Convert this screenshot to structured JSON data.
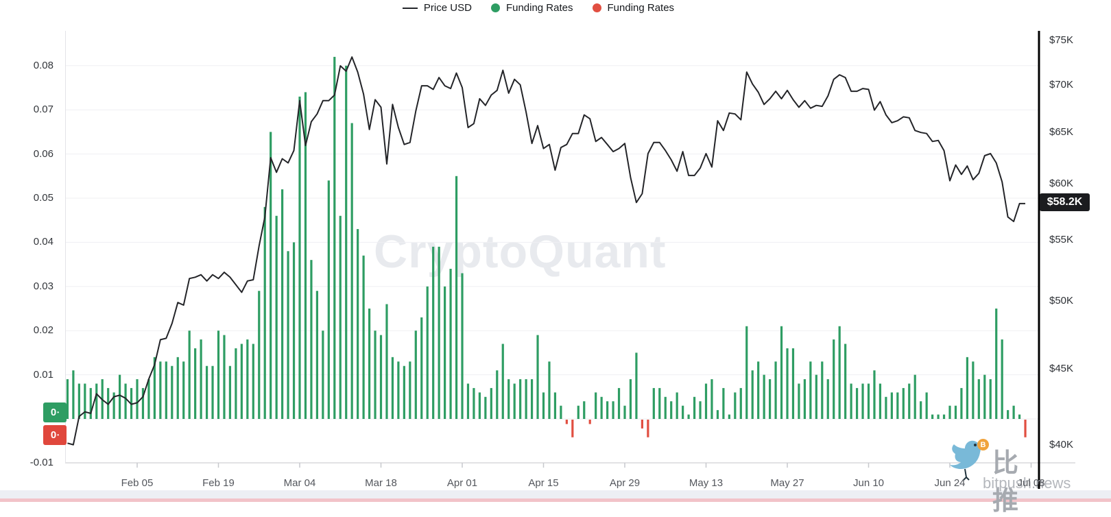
{
  "legend": {
    "price_label": "Price USD",
    "funding_positive_label": "Funding Rates",
    "funding_negative_label": "Funding Rates"
  },
  "watermarks": {
    "center": "CryptoQuant",
    "bitpush_cn": "比推",
    "bitpush_en": "bitpush.news",
    "coin_letter": "B"
  },
  "badges": {
    "price_current": "$58.2K",
    "green_zero": "0",
    "red_zero": "0",
    "zero_dot": "•"
  },
  "colors": {
    "price_line": "#232428",
    "funding_positive": "#2e9d63",
    "funding_negative": "#e14f41",
    "grid": "#efeff2",
    "zero_line": "#ececf0",
    "axis_line": "#d8d8dc",
    "left_border": "#e3e3e7",
    "right_axis": "#000000",
    "price_badge_bg": "#1b1c1f"
  },
  "axes": {
    "left_ticks": [
      {
        "label": "0.08",
        "value": 0.08
      },
      {
        "label": "0.07",
        "value": 0.07
      },
      {
        "label": "0.06",
        "value": 0.06
      },
      {
        "label": "0.05",
        "value": 0.05
      },
      {
        "label": "0.04",
        "value": 0.04
      },
      {
        "label": "0.03",
        "value": 0.03
      },
      {
        "label": "0.02",
        "value": 0.02
      },
      {
        "label": "0.01",
        "value": 0.01
      },
      {
        "label": "-0.01",
        "value": -0.01
      }
    ],
    "right_ticks": [
      {
        "label": "$75K",
        "value": 75
      },
      {
        "label": "$70K",
        "value": 70
      },
      {
        "label": "$65K",
        "value": 65
      },
      {
        "label": "$60K",
        "value": 60
      },
      {
        "label": "$55K",
        "value": 55
      },
      {
        "label": "$50K",
        "value": 50
      },
      {
        "label": "$45K",
        "value": 45
      },
      {
        "label": "$40K",
        "value": 40
      }
    ],
    "x_ticks": [
      {
        "label": "Feb 05",
        "day": 12
      },
      {
        "label": "Feb 19",
        "day": 26
      },
      {
        "label": "Mar 04",
        "day": 40
      },
      {
        "label": "Mar 18",
        "day": 54
      },
      {
        "label": "Apr 01",
        "day": 68
      },
      {
        "label": "Apr 15",
        "day": 82
      },
      {
        "label": "Apr 29",
        "day": 96
      },
      {
        "label": "May 13",
        "day": 110
      },
      {
        "label": "May 27",
        "day": 124
      },
      {
        "label": "Jun 10",
        "day": 138
      },
      {
        "label": "Jun 24",
        "day": 152
      },
      {
        "label": "Jul 08",
        "day": 166
      }
    ]
  },
  "chart_data": {
    "type": "mixed",
    "frequency": "daily",
    "start_date": "Jan 24",
    "end_date": "Jul 07",
    "left_axis": {
      "label": "Funding Rates",
      "range": [
        -0.01,
        0.085
      ],
      "scale": "linear"
    },
    "right_axis": {
      "label": "Price USD",
      "range_k": [
        40,
        75
      ],
      "scale": "log"
    },
    "current_price_label": "$58.2K",
    "series": [
      {
        "name": "Price USD",
        "type": "line",
        "unit": "thousand USD",
        "values": [
          40.1,
          40.0,
          41.8,
          42.1,
          42.0,
          43.3,
          42.9,
          42.6,
          43.1,
          43.2,
          43.0,
          42.6,
          42.7,
          43.1,
          44.3,
          45.3,
          47.1,
          47.2,
          48.3,
          49.9,
          49.7,
          51.8,
          51.9,
          52.1,
          51.6,
          52.1,
          51.8,
          52.3,
          51.9,
          51.3,
          50.7,
          51.6,
          51.7,
          54.5,
          57.0,
          62.5,
          61.1,
          62.4,
          62.0,
          63.2,
          68.3,
          63.7,
          66.1,
          66.9,
          68.3,
          68.3,
          68.9,
          72.1,
          71.5,
          73.1,
          71.4,
          69.0,
          65.3,
          68.4,
          67.6,
          61.9,
          67.9,
          65.5,
          63.8,
          64.0,
          67.2,
          69.9,
          69.9,
          69.5,
          70.8,
          69.9,
          69.6,
          71.3,
          69.7,
          65.5,
          65.9,
          68.5,
          67.8,
          68.9,
          69.4,
          71.6,
          69.1,
          70.6,
          70.0,
          67.1,
          63.9,
          65.7,
          63.4,
          63.8,
          61.3,
          63.5,
          63.8,
          64.9,
          64.9,
          66.8,
          66.4,
          64.1,
          64.5,
          63.8,
          63.1,
          63.4,
          63.9,
          60.6,
          58.3,
          59.1,
          62.9,
          64.0,
          64.0,
          63.2,
          62.3,
          61.2,
          63.1,
          60.8,
          60.8,
          61.5,
          62.9,
          61.6,
          66.2,
          65.2,
          67.0,
          66.9,
          66.3,
          71.4,
          70.1,
          69.2,
          67.9,
          68.5,
          69.3,
          68.5,
          69.4,
          68.4,
          67.6,
          68.3,
          67.5,
          67.8,
          67.7,
          68.8,
          70.6,
          71.1,
          70.8,
          69.3,
          69.3,
          69.6,
          69.5,
          67.3,
          68.2,
          66.8,
          66.0,
          66.2,
          66.6,
          66.5,
          65.2,
          65.0,
          64.9,
          64.1,
          64.2,
          63.2,
          60.3,
          61.8,
          60.9,
          61.7,
          60.4,
          61.0,
          62.7,
          62.9,
          62.0,
          60.2,
          57.0,
          56.6,
          58.2,
          58.2
        ]
      },
      {
        "name": "Funding Rates",
        "type": "bar",
        "unit": "rate",
        "values": [
          0.009,
          0.011,
          0.008,
          0.008,
          0.007,
          0.008,
          0.009,
          0.007,
          0.006,
          0.01,
          0.008,
          0.007,
          0.009,
          0.007,
          0.009,
          0.014,
          0.013,
          0.013,
          0.012,
          0.014,
          0.013,
          0.02,
          0.016,
          0.018,
          0.012,
          0.012,
          0.02,
          0.019,
          0.012,
          0.016,
          0.017,
          0.018,
          0.017,
          0.029,
          0.048,
          0.065,
          0.046,
          0.052,
          0.038,
          0.04,
          0.073,
          0.074,
          0.036,
          0.029,
          0.02,
          0.054,
          0.082,
          0.046,
          0.08,
          0.067,
          0.043,
          0.037,
          0.025,
          0.02,
          0.019,
          0.026,
          0.014,
          0.013,
          0.012,
          0.013,
          0.02,
          0.023,
          0.03,
          0.039,
          0.039,
          0.03,
          0.034,
          0.055,
          0.033,
          0.008,
          0.007,
          0.006,
          0.005,
          0.007,
          0.011,
          0.017,
          0.009,
          0.008,
          0.009,
          0.009,
          0.009,
          0.019,
          0.006,
          0.013,
          0.006,
          0.003,
          -0.001,
          -0.004,
          0.003,
          0.004,
          -0.001,
          0.006,
          0.005,
          0.004,
          0.004,
          0.007,
          0.003,
          0.009,
          0.015,
          -0.002,
          -0.004,
          0.007,
          0.007,
          0.005,
          0.004,
          0.006,
          0.003,
          0.001,
          0.005,
          0.004,
          0.008,
          0.009,
          0.002,
          0.007,
          0.001,
          0.006,
          0.007,
          0.021,
          0.011,
          0.013,
          0.01,
          0.009,
          0.013,
          0.021,
          0.016,
          0.016,
          0.008,
          0.009,
          0.013,
          0.01,
          0.013,
          0.009,
          0.018,
          0.021,
          0.017,
          0.008,
          0.007,
          0.008,
          0.008,
          0.011,
          0.008,
          0.005,
          0.006,
          0.006,
          0.007,
          0.008,
          0.01,
          0.004,
          0.006,
          0.001,
          0.001,
          0.001,
          0.003,
          0.003,
          0.007,
          0.014,
          0.013,
          0.009,
          0.01,
          0.009,
          0.025,
          0.018,
          0.002,
          0.003,
          0.001,
          -0.004
        ]
      }
    ]
  }
}
